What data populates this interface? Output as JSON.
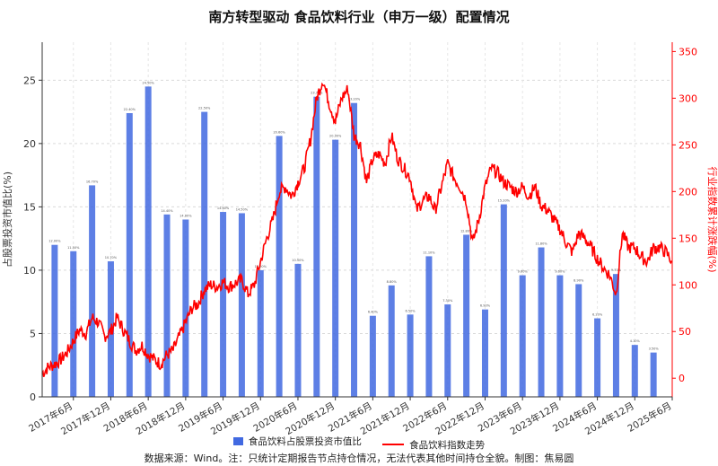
{
  "title": "南方转型驱动 食品饮料行业（申万一级）配置情况",
  "source_note": "数据来源：Wind。注：只统计定期报告节点持仓情况，无法代表其他时间持仓全貌。制图：焦易圆",
  "legend": {
    "bar_label": "食品饮料占股票投资市值比",
    "line_label": "食品饮料指数走势"
  },
  "colors": {
    "bar": "#4169e1",
    "line": "#ff0000",
    "right_axis": "#ff0000",
    "left_axis": "#333333"
  },
  "chart_data": {
    "type": "bar+line",
    "title": "南方转型驱动 食品饮料行业（申万一级）配置情况",
    "ylabel_left": "占股票投资市值比(%)",
    "ylabel_right": "行业指数累计涨跌幅(%)",
    "ylim_left": [
      0,
      28
    ],
    "yticks_left": [
      0,
      5,
      10,
      15,
      20,
      25
    ],
    "ylim_right": [
      -20,
      360
    ],
    "yticks_right": [
      0,
      50,
      100,
      150,
      200,
      250,
      300,
      350
    ],
    "x_tick_labels": [
      "2017年6月",
      "2017年12月",
      "2018年6月",
      "2018年12月",
      "2019年6月",
      "2019年12月",
      "2020年6月",
      "2020年12月",
      "2021年6月",
      "2021年12月",
      "2022年6月",
      "2022年12月",
      "2023年6月",
      "2023年12月",
      "2024年6月",
      "2024年12月",
      "2025年6月"
    ],
    "grid": true,
    "legend_position": "bottom",
    "bar_series": {
      "name": "食品饮料占股票投资市值比",
      "values": [
        {
          "date": "2017-03",
          "value": 12.0
        },
        {
          "date": "2017-06",
          "value": 11.5
        },
        {
          "date": "2017-09",
          "value": 16.7
        },
        {
          "date": "2017-12",
          "value": 10.7
        },
        {
          "date": "2018-03",
          "value": 22.4
        },
        {
          "date": "2018-06",
          "value": 24.5
        },
        {
          "date": "2018-09",
          "value": 14.4
        },
        {
          "date": "2018-12",
          "value": 14.0
        },
        {
          "date": "2019-03",
          "value": 22.5
        },
        {
          "date": "2019-06",
          "value": 14.6
        },
        {
          "date": "2019-09",
          "value": 14.5
        },
        {
          "date": "2019-12",
          "value": 10.0
        },
        {
          "date": "2020-03",
          "value": 20.6
        },
        {
          "date": "2020-06",
          "value": 10.5
        },
        {
          "date": "2020-09",
          "value": 23.7
        },
        {
          "date": "2020-12",
          "value": 20.3
        },
        {
          "date": "2021-03",
          "value": 23.2
        },
        {
          "date": "2021-06",
          "value": 6.4
        },
        {
          "date": "2021-09",
          "value": 8.8
        },
        {
          "date": "2021-12",
          "value": 6.5
        },
        {
          "date": "2022-03",
          "value": 11.1
        },
        {
          "date": "2022-06",
          "value": 7.3
        },
        {
          "date": "2022-09",
          "value": 12.8
        },
        {
          "date": "2022-12",
          "value": 6.9
        },
        {
          "date": "2023-03",
          "value": 15.2
        },
        {
          "date": "2023-06",
          "value": 9.6
        },
        {
          "date": "2023-09",
          "value": 11.8
        },
        {
          "date": "2023-12",
          "value": 9.6
        },
        {
          "date": "2024-03",
          "value": 8.9
        },
        {
          "date": "2024-06",
          "value": 6.2
        },
        {
          "date": "2024-09",
          "value": 9.7
        },
        {
          "date": "2024-12",
          "value": 4.1
        },
        {
          "date": "2025-03",
          "value": 3.5
        }
      ]
    },
    "line_series": {
      "name": "食品饮料指数走势",
      "points": [
        {
          "date": "2017-01",
          "value": 5
        },
        {
          "date": "2017-02",
          "value": 12
        },
        {
          "date": "2017-03",
          "value": 15
        },
        {
          "date": "2017-04",
          "value": 20
        },
        {
          "date": "2017-05",
          "value": 28
        },
        {
          "date": "2017-06",
          "value": 40
        },
        {
          "date": "2017-07",
          "value": 52
        },
        {
          "date": "2017-08",
          "value": 48
        },
        {
          "date": "2017-09",
          "value": 65
        },
        {
          "date": "2017-10",
          "value": 60
        },
        {
          "date": "2017-11",
          "value": 45
        },
        {
          "date": "2017-12",
          "value": 50
        },
        {
          "date": "2018-01",
          "value": 65
        },
        {
          "date": "2018-02",
          "value": 52
        },
        {
          "date": "2018-03",
          "value": 40
        },
        {
          "date": "2018-04",
          "value": 30
        },
        {
          "date": "2018-05",
          "value": 35
        },
        {
          "date": "2018-06",
          "value": 25
        },
        {
          "date": "2018-07",
          "value": 20
        },
        {
          "date": "2018-08",
          "value": 15
        },
        {
          "date": "2018-09",
          "value": 25
        },
        {
          "date": "2018-10",
          "value": 30
        },
        {
          "date": "2018-11",
          "value": 45
        },
        {
          "date": "2018-12",
          "value": 60
        },
        {
          "date": "2019-01",
          "value": 75
        },
        {
          "date": "2019-02",
          "value": 80
        },
        {
          "date": "2019-03",
          "value": 95
        },
        {
          "date": "2019-04",
          "value": 100
        },
        {
          "date": "2019-05",
          "value": 98
        },
        {
          "date": "2019-06",
          "value": 103
        },
        {
          "date": "2019-07",
          "value": 98
        },
        {
          "date": "2019-08",
          "value": 102
        },
        {
          "date": "2019-09",
          "value": 105
        },
        {
          "date": "2019-10",
          "value": 90
        },
        {
          "date": "2019-11",
          "value": 100
        },
        {
          "date": "2019-12",
          "value": 125
        },
        {
          "date": "2020-01",
          "value": 150
        },
        {
          "date": "2020-02",
          "value": 170
        },
        {
          "date": "2020-03",
          "value": 200
        },
        {
          "date": "2020-04",
          "value": 205
        },
        {
          "date": "2020-05",
          "value": 195
        },
        {
          "date": "2020-06",
          "value": 210
        },
        {
          "date": "2020-07",
          "value": 225
        },
        {
          "date": "2020-08",
          "value": 255
        },
        {
          "date": "2020-09",
          "value": 300
        },
        {
          "date": "2020-10",
          "value": 320
        },
        {
          "date": "2020-11",
          "value": 295
        },
        {
          "date": "2020-12",
          "value": 275
        },
        {
          "date": "2021-01",
          "value": 300
        },
        {
          "date": "2021-02",
          "value": 310
        },
        {
          "date": "2021-03",
          "value": 260
        },
        {
          "date": "2021-04",
          "value": 250
        },
        {
          "date": "2021-05",
          "value": 210
        },
        {
          "date": "2021-06",
          "value": 235
        },
        {
          "date": "2021-07",
          "value": 240
        },
        {
          "date": "2021-08",
          "value": 230
        },
        {
          "date": "2021-09",
          "value": 260
        },
        {
          "date": "2021-10",
          "value": 235
        },
        {
          "date": "2021-11",
          "value": 225
        },
        {
          "date": "2021-12",
          "value": 215
        },
        {
          "date": "2022-01",
          "value": 180
        },
        {
          "date": "2022-02",
          "value": 190
        },
        {
          "date": "2022-03",
          "value": 195
        },
        {
          "date": "2022-04",
          "value": 180
        },
        {
          "date": "2022-05",
          "value": 205
        },
        {
          "date": "2022-06",
          "value": 230
        },
        {
          "date": "2022-07",
          "value": 215
        },
        {
          "date": "2022-08",
          "value": 205
        },
        {
          "date": "2022-09",
          "value": 190
        },
        {
          "date": "2022-10",
          "value": 145
        },
        {
          "date": "2022-11",
          "value": 170
        },
        {
          "date": "2022-12",
          "value": 205
        },
        {
          "date": "2023-01",
          "value": 225
        },
        {
          "date": "2023-02",
          "value": 220
        },
        {
          "date": "2023-03",
          "value": 210
        },
        {
          "date": "2023-04",
          "value": 205
        },
        {
          "date": "2023-05",
          "value": 200
        },
        {
          "date": "2023-06",
          "value": 205
        },
        {
          "date": "2023-07",
          "value": 195
        },
        {
          "date": "2023-08",
          "value": 205
        },
        {
          "date": "2023-09",
          "value": 185
        },
        {
          "date": "2023-10",
          "value": 180
        },
        {
          "date": "2023-11",
          "value": 170
        },
        {
          "date": "2023-12",
          "value": 160
        },
        {
          "date": "2024-01",
          "value": 145
        },
        {
          "date": "2024-02",
          "value": 135
        },
        {
          "date": "2024-03",
          "value": 155
        },
        {
          "date": "2024-04",
          "value": 150
        },
        {
          "date": "2024-05",
          "value": 140
        },
        {
          "date": "2024-06",
          "value": 128
        },
        {
          "date": "2024-07",
          "value": 118
        },
        {
          "date": "2024-08",
          "value": 110
        },
        {
          "date": "2024-09",
          "value": 90
        },
        {
          "date": "2024-10",
          "value": 155
        },
        {
          "date": "2024-11",
          "value": 140
        },
        {
          "date": "2024-12",
          "value": 140
        },
        {
          "date": "2025-01",
          "value": 130
        },
        {
          "date": "2025-02",
          "value": 125
        },
        {
          "date": "2025-03",
          "value": 140
        },
        {
          "date": "2025-04",
          "value": 140
        },
        {
          "date": "2025-05",
          "value": 135
        },
        {
          "date": "2025-06",
          "value": 125
        }
      ]
    }
  }
}
